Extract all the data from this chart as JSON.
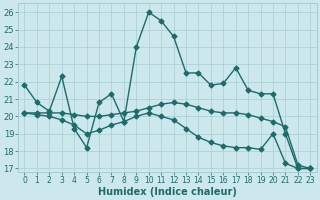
{
  "xlabel": "Humidex (Indice chaleur)",
  "bg_color": "#cce8ec",
  "grid_color": "#a8cdd2",
  "line_color": "#1e6b6b",
  "xlim": [
    -0.5,
    23.5
  ],
  "ylim": [
    16.8,
    26.5
  ],
  "yticks": [
    17,
    18,
    19,
    20,
    21,
    22,
    23,
    24,
    25,
    26
  ],
  "xticks": [
    0,
    1,
    2,
    3,
    4,
    5,
    6,
    7,
    8,
    9,
    10,
    11,
    12,
    13,
    14,
    15,
    16,
    17,
    18,
    19,
    20,
    21,
    22,
    23
  ],
  "line1_x": [
    0,
    1,
    2,
    3,
    4,
    5,
    6,
    7,
    8,
    9,
    10,
    11,
    12,
    13,
    14,
    15,
    16,
    17,
    18,
    19,
    20,
    21,
    22,
    23
  ],
  "line1_y": [
    21.8,
    20.8,
    20.3,
    22.3,
    19.3,
    18.2,
    20.8,
    21.3,
    19.7,
    24.0,
    26.0,
    25.5,
    24.6,
    22.5,
    22.5,
    21.8,
    21.9,
    22.8,
    21.5,
    21.3,
    21.3,
    19.0,
    17.0,
    17.0
  ],
  "line2_x": [
    0,
    1,
    2,
    3,
    4,
    5,
    6,
    7,
    8,
    9,
    10,
    11,
    12,
    13,
    14,
    15,
    16,
    17,
    18,
    19,
    20,
    21,
    22,
    23
  ],
  "line2_y": [
    20.2,
    20.2,
    20.2,
    20.2,
    20.1,
    20.0,
    20.0,
    20.1,
    20.2,
    20.3,
    20.5,
    20.7,
    20.8,
    20.7,
    20.5,
    20.3,
    20.2,
    20.2,
    20.1,
    19.9,
    19.7,
    19.4,
    17.2,
    17.0
  ],
  "line3_x": [
    0,
    1,
    2,
    3,
    4,
    5,
    6,
    7,
    8,
    9,
    10,
    11,
    12,
    13,
    14,
    15,
    16,
    17,
    18,
    19,
    20,
    21,
    22,
    23
  ],
  "line3_y": [
    20.2,
    20.1,
    20.0,
    19.8,
    19.5,
    19.0,
    19.2,
    19.5,
    19.7,
    20.0,
    20.2,
    20.0,
    19.8,
    19.3,
    18.8,
    18.5,
    18.3,
    18.2,
    18.2,
    18.1,
    19.0,
    17.3,
    17.0,
    17.0
  ],
  "marker_size": 2.5,
  "linewidth": 1.0
}
